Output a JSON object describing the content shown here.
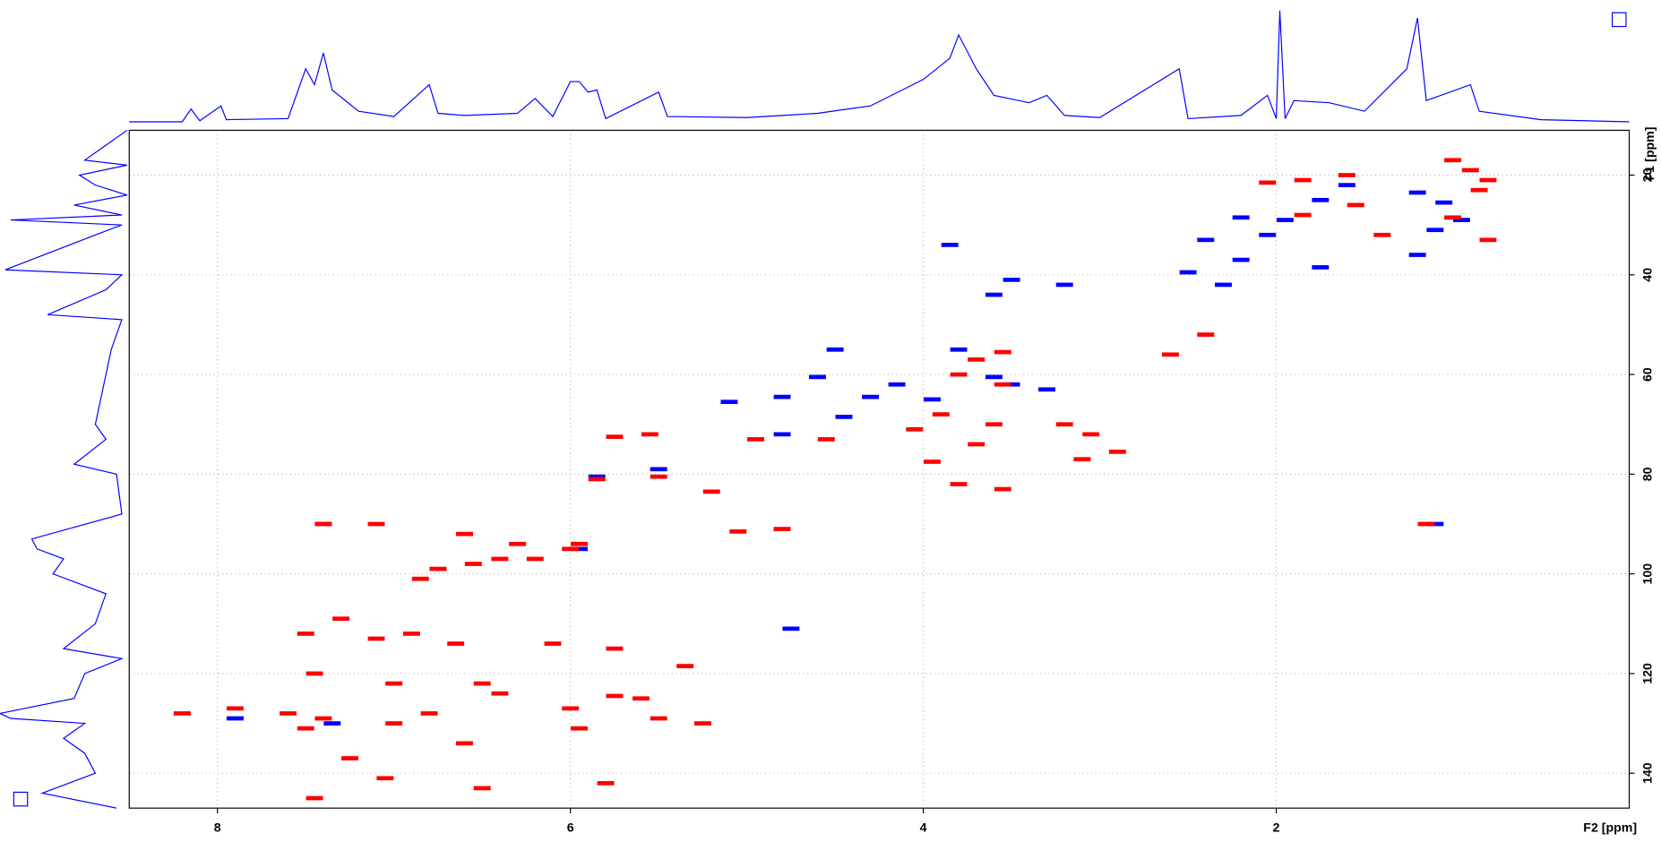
{
  "chart_data": {
    "type": "scatter",
    "xlabel": "F2 [ppm]",
    "ylabel": "F1 [ppm]",
    "xlim": [
      8.5,
      0
    ],
    "ylim": [
      11,
      147
    ],
    "xticks": [
      8,
      6,
      4,
      2
    ],
    "yticks": [
      20,
      40,
      60,
      80,
      100,
      120,
      140
    ],
    "grid": true,
    "series": [
      {
        "color": "#0000ff",
        "x": [
          1.05,
          1.2,
          1.6,
          1.75,
          0.95,
          1.1,
          1.2,
          2.2,
          1.95,
          2.05,
          2.4,
          2.2,
          2.5,
          1.75,
          2.3,
          3.2,
          3.85,
          3.5,
          3.6,
          3.8,
          3.6,
          3.5,
          3.3,
          3.95,
          4.3,
          4.15,
          4.6,
          4.8,
          5.1,
          4.5,
          4.45,
          4.8,
          5.5,
          5.85,
          5.95,
          7.4,
          7.9,
          7.35,
          1.1,
          4.75
        ],
        "values": [
          25.5,
          23.5,
          22,
          25,
          29,
          31,
          36,
          28.5,
          29,
          32,
          33,
          37,
          39.5,
          38.5,
          42,
          42,
          34,
          41,
          44,
          55,
          60.5,
          62,
          63,
          65,
          64.5,
          62,
          60.5,
          64.5,
          65.5,
          55,
          68.5,
          72,
          79,
          80.5,
          95,
          90,
          129,
          130,
          90,
          111
        ]
      },
      {
        "color": "#ff0000",
        "x": [
          1.0,
          0.9,
          0.8,
          0.85,
          1.6,
          1.85,
          2.05,
          1.55,
          1.85,
          1.0,
          0.8,
          1.4,
          3.55,
          3.7,
          3.8,
          3.55,
          3.9,
          3.6,
          3.7,
          3.05,
          3.1,
          3.2,
          3.95,
          3.8,
          3.55,
          2.9,
          2.4,
          2.6,
          4.55,
          5.55,
          5.75,
          5.85,
          5.5,
          5.2,
          4.95,
          4.05,
          5.05,
          4.8,
          5.95,
          6.0,
          6.3,
          6.6,
          6.55,
          6.4,
          6.2,
          6.75,
          6.85,
          7.4,
          7.1,
          7.5,
          7.3,
          7.1,
          6.9,
          6.65,
          6.1,
          5.75,
          5.35,
          7.45,
          7.0,
          6.4,
          6.0,
          5.6,
          5.5,
          5.25,
          8.2,
          7.9,
          7.6,
          7.4,
          7.5,
          7.0,
          6.8,
          6.6,
          6.5,
          7.45,
          5.8,
          7.05,
          5.95,
          7.25,
          6.5,
          5.75,
          1.15
        ],
        "values": [
          17,
          19,
          21,
          23,
          20,
          21,
          21.5,
          26,
          28,
          28.5,
          33,
          32,
          55.5,
          57,
          60,
          62,
          68,
          70,
          74,
          72,
          77,
          70,
          77.5,
          82,
          83,
          75.5,
          52,
          56,
          73,
          72,
          72.5,
          81,
          80.5,
          83.5,
          73,
          71,
          91.5,
          91,
          94,
          95,
          94,
          92,
          98,
          97,
          97,
          99,
          101,
          90,
          90,
          112,
          109,
          113,
          112,
          114,
          114,
          115,
          118.5,
          120,
          122,
          124,
          127,
          125,
          129,
          130,
          128,
          127,
          128,
          129,
          131,
          130,
          128,
          134,
          143,
          145,
          142,
          141,
          131,
          137,
          122,
          124.5,
          90
        ]
      }
    ],
    "projections": {
      "f2": {
        "color": "#0000ff",
        "x": [
          8.5,
          8.2,
          8.15,
          8.1,
          7.98,
          7.95,
          7.6,
          7.5,
          7.45,
          7.4,
          7.35,
          7.2,
          7.0,
          6.8,
          6.75,
          6.6,
          6.3,
          6.2,
          6.1,
          6.0,
          5.95,
          5.9,
          5.85,
          5.8,
          5.5,
          5.45,
          5.0,
          4.6,
          4.3,
          4.0,
          3.85,
          3.8,
          3.7,
          3.6,
          3.4,
          3.3,
          3.2,
          3.0,
          2.55,
          2.5,
          2.2,
          2.05,
          2.0,
          1.98,
          1.95,
          1.9,
          1.7,
          1.5,
          1.26,
          1.2,
          1.15,
          0.9,
          0.85,
          0.5,
          0.0
        ],
        "values": [
          0,
          0,
          12,
          1,
          15,
          2,
          3,
          50,
          35,
          65,
          30,
          10,
          5,
          35,
          8,
          6,
          8,
          22,
          5,
          38,
          38,
          28,
          30,
          3,
          28,
          5,
          4,
          8,
          15,
          40,
          60,
          82,
          50,
          25,
          18,
          25,
          6,
          4,
          50,
          3,
          6,
          25,
          3,
          105,
          3,
          20,
          18,
          10,
          50,
          98,
          20,
          35,
          10,
          2,
          0
        ]
      },
      "f1": {
        "color": "#0000ff",
        "x": [
          11,
          17,
          18,
          20,
          22,
          24,
          26,
          28,
          29,
          30,
          32,
          39,
          40,
          43,
          48,
          49,
          55,
          60,
          65,
          70,
          73,
          78,
          80,
          88,
          93,
          95,
          97,
          100,
          104,
          110,
          115,
          117,
          120,
          125,
          128,
          129,
          130,
          133,
          136,
          140,
          144,
          147
        ],
        "values": [
          0,
          40,
          0,
          45,
          30,
          0,
          50,
          5,
          110,
          5,
          30,
          115,
          5,
          20,
          75,
          5,
          15,
          20,
          25,
          30,
          20,
          50,
          10,
          5,
          90,
          85,
          60,
          70,
          20,
          30,
          60,
          5,
          40,
          50,
          120,
          110,
          40,
          60,
          40,
          30,
          80,
          10
        ]
      }
    }
  }
}
